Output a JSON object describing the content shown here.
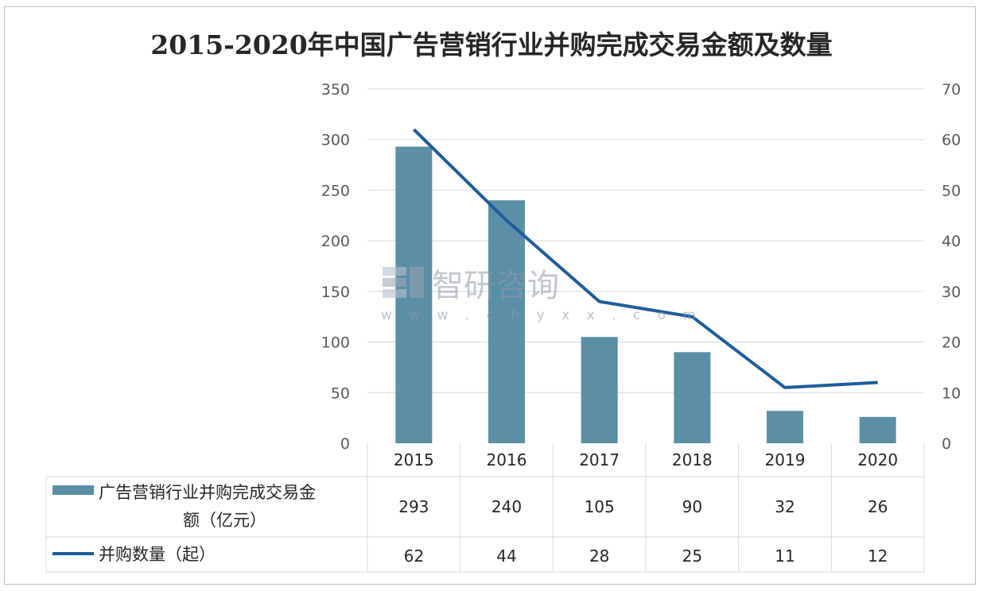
{
  "chart_data": {
    "type": "bar",
    "title": "2015-2020年中国广告营销行业并购完成交易金额及数量",
    "categories": [
      "2015",
      "2016",
      "2017",
      "2018",
      "2019",
      "2020"
    ],
    "series": [
      {
        "name": "广告营销行业并购完成交易金额（亿元）",
        "type": "bar",
        "axis": "left",
        "values": [
          293,
          240,
          105,
          90,
          32,
          26
        ],
        "color": "#5b8fa8"
      },
      {
        "name": "并购数量（起）",
        "type": "line",
        "axis": "right",
        "values": [
          62,
          44,
          28,
          25,
          11,
          12
        ],
        "color": "#1f5c99"
      }
    ],
    "y_left": {
      "min": 0,
      "max": 350,
      "ticks": [
        "0",
        "50",
        "100",
        "150",
        "200",
        "250",
        "300",
        "350"
      ]
    },
    "y_right": {
      "min": 0,
      "max": 70,
      "ticks": [
        "0",
        "10",
        "20",
        "30",
        "40",
        "50",
        "60",
        "70"
      ]
    },
    "grid": true,
    "legend": "data-table",
    "data_table": true
  },
  "legend_rows": [
    {
      "line1": "广告营销行业并购完成交易金",
      "line2": "额（亿元）"
    },
    {
      "line1": "并购数量（起）"
    }
  ],
  "watermark": {
    "text": "智研咨询",
    "url": "w w w . c h y x x . c o m"
  }
}
